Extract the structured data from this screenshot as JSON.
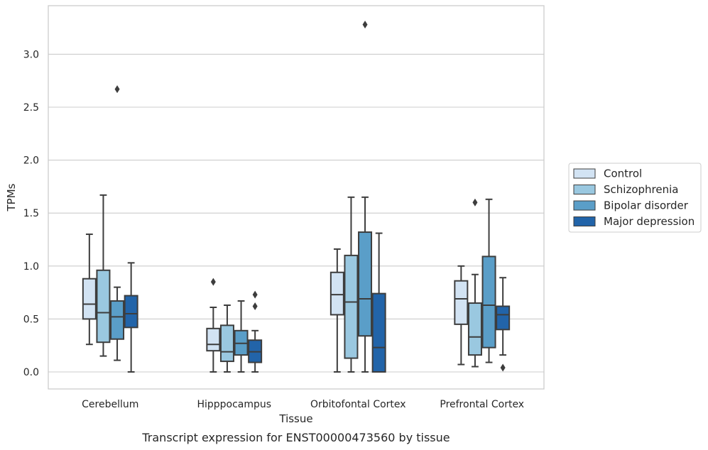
{
  "caption": "Transcript expression for ENST00000473560 by tissue",
  "chart_data": {
    "type": "box",
    "title": "",
    "xlabel": "Tissue",
    "ylabel": "TPMs",
    "ylim": [
      -0.16,
      3.45
    ],
    "yticks": [
      "0.0",
      "0.5",
      "1.0",
      "1.5",
      "2.0",
      "2.5",
      "3.0"
    ],
    "grid": "horizontal",
    "legend_position": "right",
    "categories": [
      "Cerebellum",
      "Hipppocampus",
      "Orbitofontal Cortex",
      "Prefrontal Cortex"
    ],
    "series": [
      {
        "name": "Control",
        "color": "#d2e3f3",
        "boxes": [
          {
            "whislo": 0.26,
            "q1": 0.5,
            "med": 0.64,
            "q3": 0.88,
            "whishi": 1.3,
            "fliers": []
          },
          {
            "whislo": 0.0,
            "q1": 0.2,
            "med": 0.26,
            "q3": 0.41,
            "whishi": 0.61,
            "fliers": [
              0.85
            ]
          },
          {
            "whislo": 0.0,
            "q1": 0.54,
            "med": 0.73,
            "q3": 0.94,
            "whishi": 1.16,
            "fliers": []
          },
          {
            "whislo": 0.07,
            "q1": 0.45,
            "med": 0.69,
            "q3": 0.86,
            "whishi": 1.0,
            "fliers": []
          }
        ]
      },
      {
        "name": "Schizophrenia",
        "color": "#9ac8e0",
        "boxes": [
          {
            "whislo": 0.15,
            "q1": 0.28,
            "med": 0.56,
            "q3": 0.96,
            "whishi": 1.67,
            "fliers": []
          },
          {
            "whislo": 0.0,
            "q1": 0.1,
            "med": 0.19,
            "q3": 0.44,
            "whishi": 0.63,
            "fliers": []
          },
          {
            "whislo": 0.0,
            "q1": 0.13,
            "med": 0.66,
            "q3": 1.1,
            "whishi": 1.65,
            "fliers": []
          },
          {
            "whislo": 0.05,
            "q1": 0.16,
            "med": 0.33,
            "q3": 0.65,
            "whishi": 0.92,
            "fliers": [
              1.6
            ]
          }
        ]
      },
      {
        "name": "Bipolar disorder",
        "color": "#5a9ec8",
        "boxes": [
          {
            "whislo": 0.11,
            "q1": 0.31,
            "med": 0.52,
            "q3": 0.67,
            "whishi": 0.8,
            "fliers": [
              2.67
            ]
          },
          {
            "whislo": 0.0,
            "q1": 0.16,
            "med": 0.27,
            "q3": 0.39,
            "whishi": 0.67,
            "fliers": []
          },
          {
            "whislo": 0.0,
            "q1": 0.34,
            "med": 0.69,
            "q3": 1.32,
            "whishi": 1.65,
            "fliers": [
              3.28
            ]
          },
          {
            "whislo": 0.09,
            "q1": 0.23,
            "med": 0.63,
            "q3": 1.09,
            "whishi": 1.63,
            "fliers": []
          }
        ]
      },
      {
        "name": "Major depression",
        "color": "#2264a9",
        "boxes": [
          {
            "whislo": 0.0,
            "q1": 0.42,
            "med": 0.55,
            "q3": 0.72,
            "whishi": 1.03,
            "fliers": []
          },
          {
            "whislo": 0.0,
            "q1": 0.09,
            "med": 0.19,
            "q3": 0.3,
            "whishi": 0.39,
            "fliers": [
              0.62,
              0.73
            ]
          },
          {
            "whislo": 0.0,
            "q1": 0.0,
            "med": 0.23,
            "q3": 0.74,
            "whishi": 1.31,
            "fliers": []
          },
          {
            "whislo": 0.16,
            "q1": 0.4,
            "med": 0.54,
            "q3": 0.62,
            "whishi": 0.89,
            "fliers": [
              0.04
            ]
          }
        ]
      }
    ]
  }
}
